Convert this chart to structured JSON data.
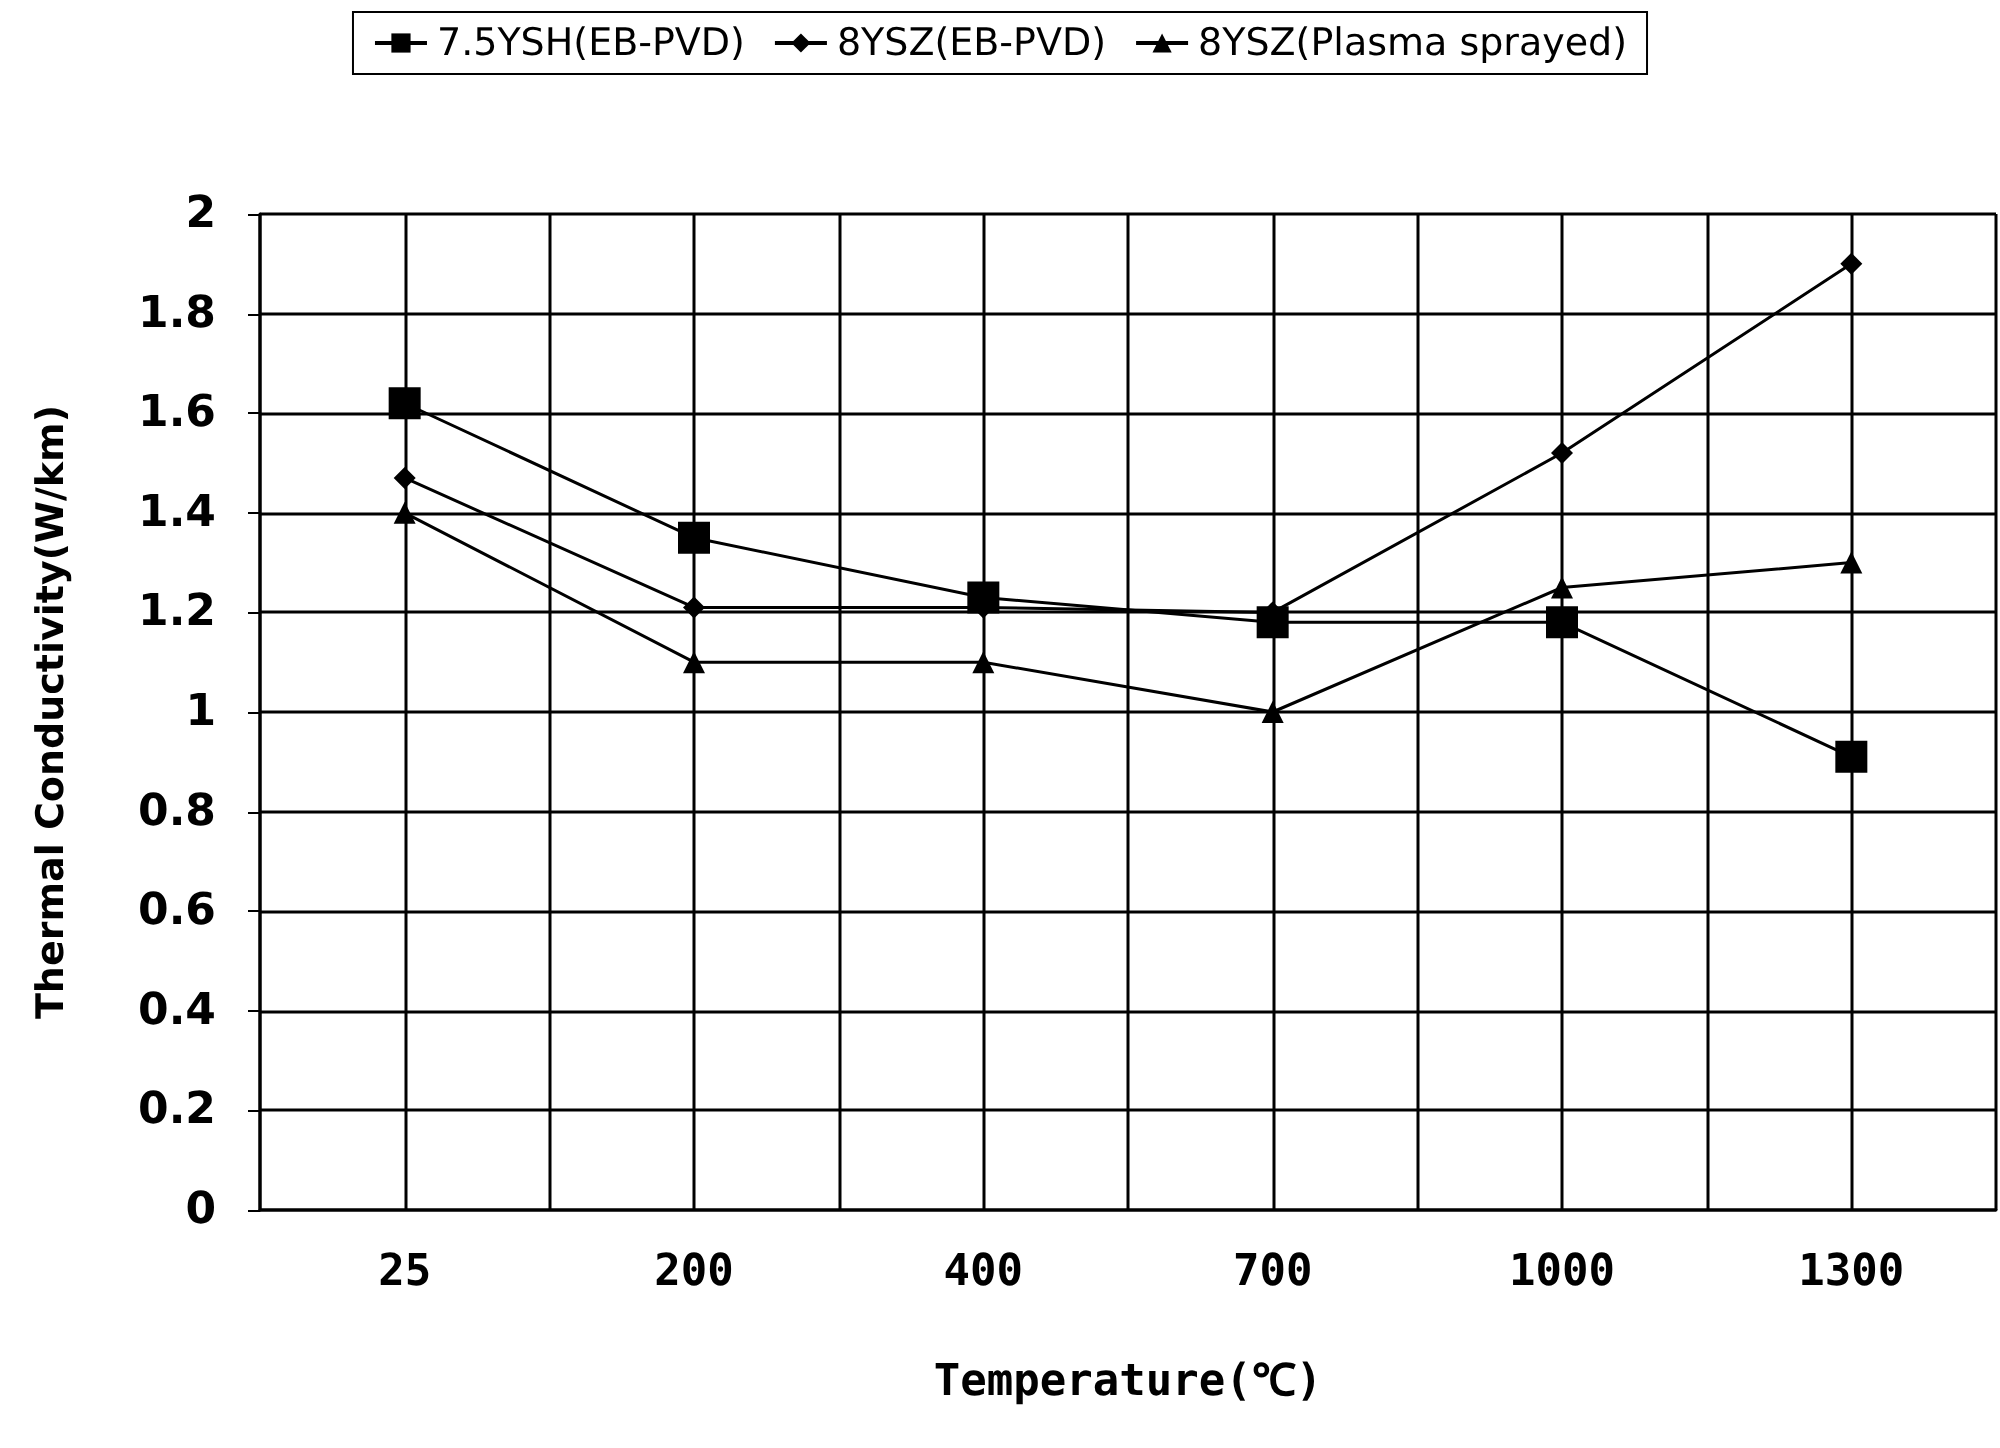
{
  "chart_data": {
    "type": "line",
    "xlabel": "Temperature(℃)",
    "ylabel": "Thermal Conductivity(W/km)",
    "categories": [
      "25",
      "200",
      "400",
      "700",
      "1000",
      "1300"
    ],
    "ylim": [
      0,
      2
    ],
    "yticks": [
      0,
      0.2,
      0.4,
      0.6,
      0.8,
      1,
      1.2,
      1.4,
      1.6,
      1.8,
      2
    ],
    "grid": true,
    "legend": "top",
    "series": [
      {
        "name": "7.5YSH(EB-PVD)",
        "color": "#000000",
        "marker": "square",
        "values": [
          1.62,
          1.35,
          1.23,
          1.18,
          1.18,
          0.91
        ]
      },
      {
        "name": "8YSZ(EB-PVD)",
        "color": "#000000",
        "marker": "diamond",
        "values": [
          1.47,
          1.21,
          1.21,
          1.2,
          1.52,
          1.9
        ]
      },
      {
        "name": "8YSZ(Plasma sprayed)",
        "color": "#000000",
        "marker": "triangle",
        "values": [
          1.4,
          1.1,
          1.1,
          1.0,
          1.25,
          1.3
        ]
      }
    ]
  }
}
